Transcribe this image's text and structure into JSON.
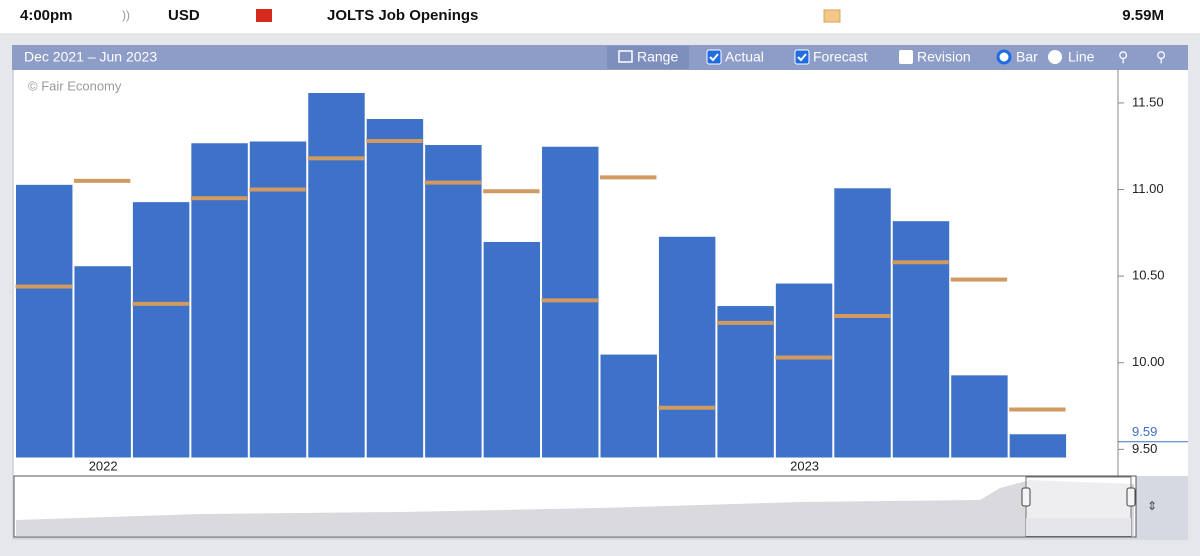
{
  "header": {
    "time": "4:00pm",
    "currency": "USD",
    "event": "JOLTS Job Openings",
    "actual": "9.59M"
  },
  "toolbar": {
    "range_text": "Dec 2021 – Jun 2023",
    "range": "Range",
    "actual": "Actual",
    "forecast": "Forecast",
    "revision": "Revision",
    "bar": "Bar",
    "line": "Line"
  },
  "chart_data": {
    "type": "bar",
    "watermark": "© Fair Economy",
    "categories": [
      null,
      "2022",
      null,
      null,
      null,
      null,
      null,
      null,
      null,
      null,
      null,
      null,
      null,
      "2023",
      null,
      null,
      null,
      null
    ],
    "series": [
      {
        "name": "Actual",
        "color": "#3d72c8",
        "values": [
          11.03,
          10.56,
          10.93,
          11.27,
          11.28,
          11.56,
          11.41,
          11.26,
          10.7,
          11.25,
          10.05,
          10.73,
          10.33,
          10.46,
          11.01,
          10.82,
          9.93,
          9.59
        ]
      },
      {
        "name": "Forecast",
        "color": "#d19a60",
        "values": [
          10.44,
          11.05,
          10.34,
          10.95,
          11.0,
          11.18,
          11.28,
          11.04,
          10.99,
          10.36,
          11.07,
          9.74,
          10.23,
          10.03,
          10.27,
          10.58,
          10.48,
          9.73
        ]
      }
    ],
    "ylim": [
      9.45,
      11.69
    ],
    "yticks": [
      {
        "value": 9.5,
        "label": "9.50"
      },
      {
        "value": 10,
        "label": "10.00"
      },
      {
        "value": 10.5,
        "label": "10.50"
      },
      {
        "value": 11,
        "label": "11.00"
      },
      {
        "value": 11.5,
        "label": "11.50"
      }
    ]
  }
}
